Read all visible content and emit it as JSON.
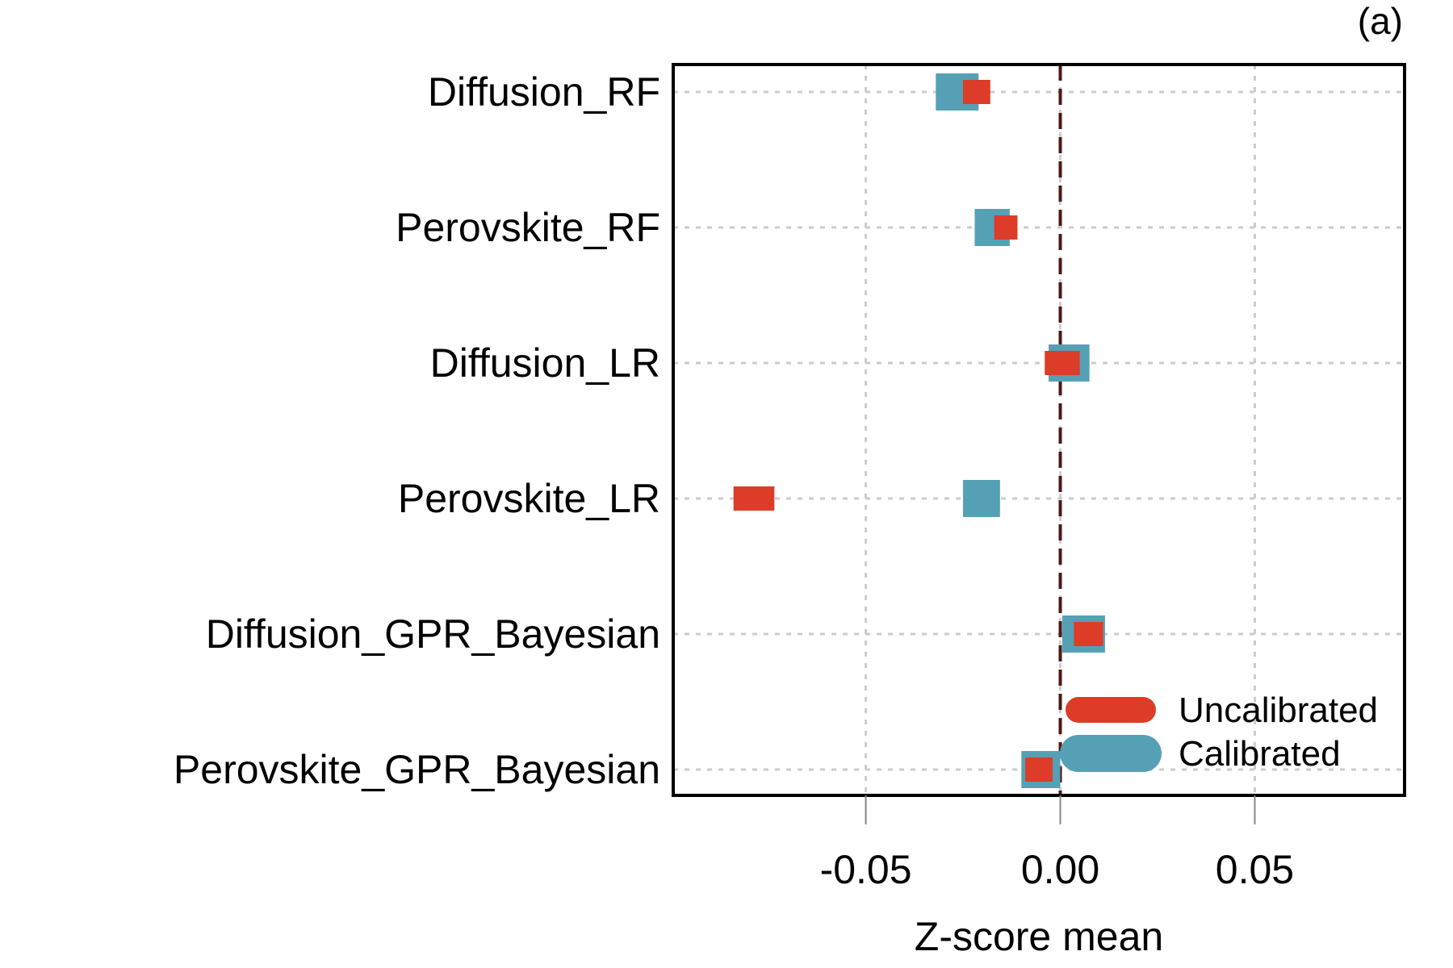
{
  "panel_label": "(a)",
  "chart_data": {
    "type": "dot-range",
    "title": "",
    "xlabel": "Z-score mean",
    "ylabel": "",
    "xlim": [
      -0.0995,
      0.0885
    ],
    "xticks": [
      -0.05,
      0.0,
      0.05
    ],
    "xtick_labels": [
      "-0.05",
      "0.00",
      "0.05"
    ],
    "reference_line": 0.0,
    "grid": true,
    "categories": [
      "Diffusion_RF",
      "Perovskite_RF",
      "Diffusion_LR",
      "Perovskite_LR",
      "Diffusion_GPR_Bayesian",
      "Perovskite_GPR_Bayesian"
    ],
    "series": [
      {
        "name": "Calibrated",
        "color": "#55a0b4",
        "intervals": [
          [
            -0.032,
            -0.021
          ],
          [
            -0.022,
            -0.013
          ],
          [
            -0.003,
            0.0075
          ],
          [
            -0.025,
            -0.0155
          ],
          [
            0.0005,
            0.0115
          ],
          [
            -0.01,
            0.0
          ]
        ]
      },
      {
        "name": "Uncalibrated",
        "color": "#dc3c28",
        "intervals": [
          [
            -0.025,
            -0.018
          ],
          [
            -0.017,
            -0.011
          ],
          [
            -0.004,
            0.005
          ],
          [
            -0.084,
            -0.0735
          ],
          [
            0.0035,
            0.011
          ],
          [
            -0.009,
            -0.002
          ]
        ]
      }
    ],
    "legend": {
      "position": "bottom-right",
      "order": [
        "Uncalibrated",
        "Calibrated"
      ]
    }
  }
}
